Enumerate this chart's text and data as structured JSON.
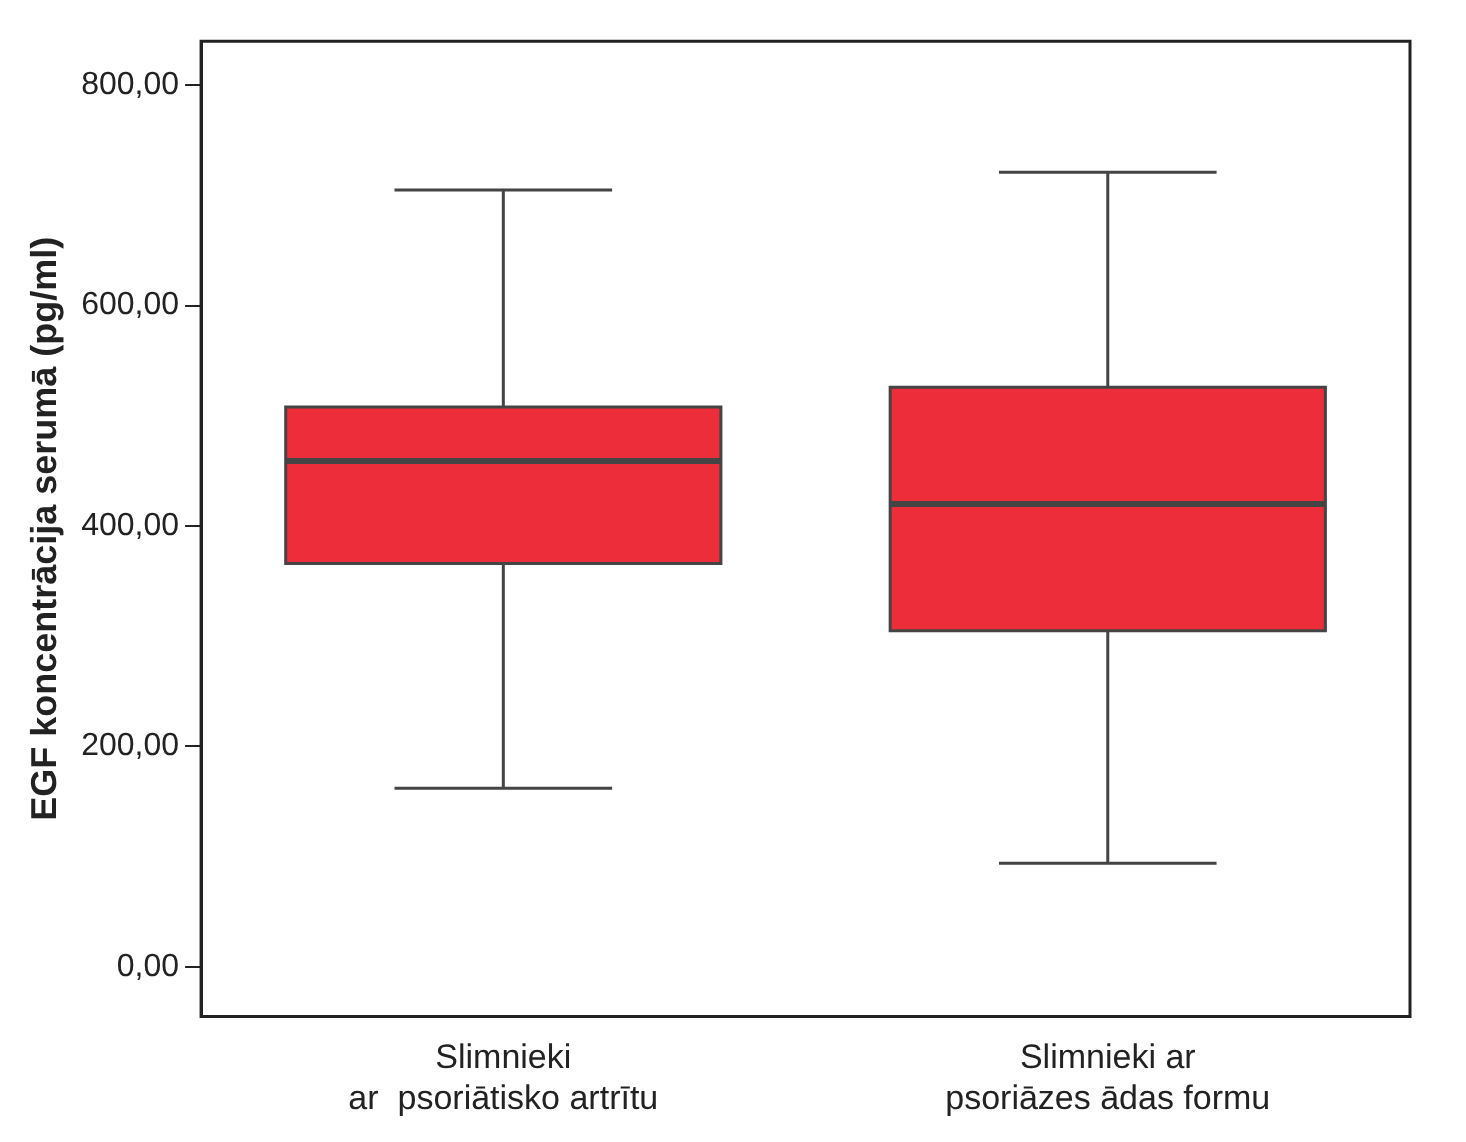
{
  "chart_data": {
    "type": "box",
    "ylabel": "EGF koncentrācija serumā (pg/ml)",
    "categories": [
      "Slimnieki\nar  psoriātisko artrītu",
      "Slimnieki ar\npsoriāzes ādas formu"
    ],
    "boxes": [
      {
        "low": 162,
        "q1": 366,
        "median": 459,
        "q3": 508,
        "high": 705
      },
      {
        "low": 94,
        "q1": 305,
        "median": 420,
        "q3": 526,
        "high": 721
      }
    ],
    "color": "#ee2d3a",
    "ylim": [
      -45,
      840
    ],
    "yticks": [
      {
        "value": 0,
        "label": "0,00"
      },
      {
        "value": 200,
        "label": "200,00"
      },
      {
        "value": 400,
        "label": "400,00"
      },
      {
        "value": 600,
        "label": "600,00"
      },
      {
        "value": 800,
        "label": "800,00"
      }
    ],
    "grid": false,
    "legend": false
  }
}
